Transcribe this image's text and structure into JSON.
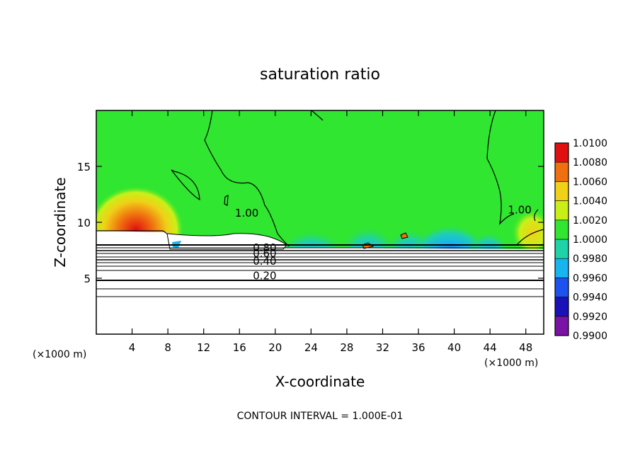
{
  "chart_data": {
    "type": "heatmap",
    "title": "saturation ratio",
    "xlabel": "X-coordinate",
    "ylabel": "Z-coordinate",
    "x_unit_left": "(×1000 m)",
    "x_unit_right": "(×1000 m)",
    "xlim": [
      0,
      50
    ],
    "ylim": [
      0,
      20
    ],
    "x_ticks": [
      4,
      8,
      12,
      16,
      20,
      24,
      28,
      32,
      36,
      40,
      44,
      48
    ],
    "y_ticks": [
      5,
      10,
      15
    ],
    "colorbar": {
      "levels": [
        "0.9900",
        "0.9920",
        "0.9940",
        "0.9960",
        "0.9980",
        "1.0000",
        "1.0020",
        "1.0040",
        "1.0060",
        "1.0080",
        "1.0100"
      ],
      "colors": [
        "#7a12a6",
        "#1a12b8",
        "#1e52f0",
        "#18b4f0",
        "#20d2a8",
        "#30e630",
        "#c8f018",
        "#f0d018",
        "#f07010",
        "#e01010",
        "#f08c8c"
      ]
    },
    "contour_labels": [
      {
        "text": "1.00",
        "x": 15.5,
        "z": 10.5
      },
      {
        "text": "1.00",
        "x": 46,
        "z": 10.8
      },
      {
        "text": "0.80",
        "x": 17.5,
        "z": 7.4
      },
      {
        "text": "0.60",
        "x": 17.5,
        "z": 6.9
      },
      {
        "text": "0.40",
        "x": 17.5,
        "z": 6.2
      },
      {
        "text": "0.20",
        "x": 17.5,
        "z": 4.9
      }
    ],
    "subsaturated_contour_levels": [
      0.2,
      0.4,
      0.6,
      0.8
    ],
    "contour_interval_text": "CONTOUR INTERVAL = 1.000E-01"
  }
}
